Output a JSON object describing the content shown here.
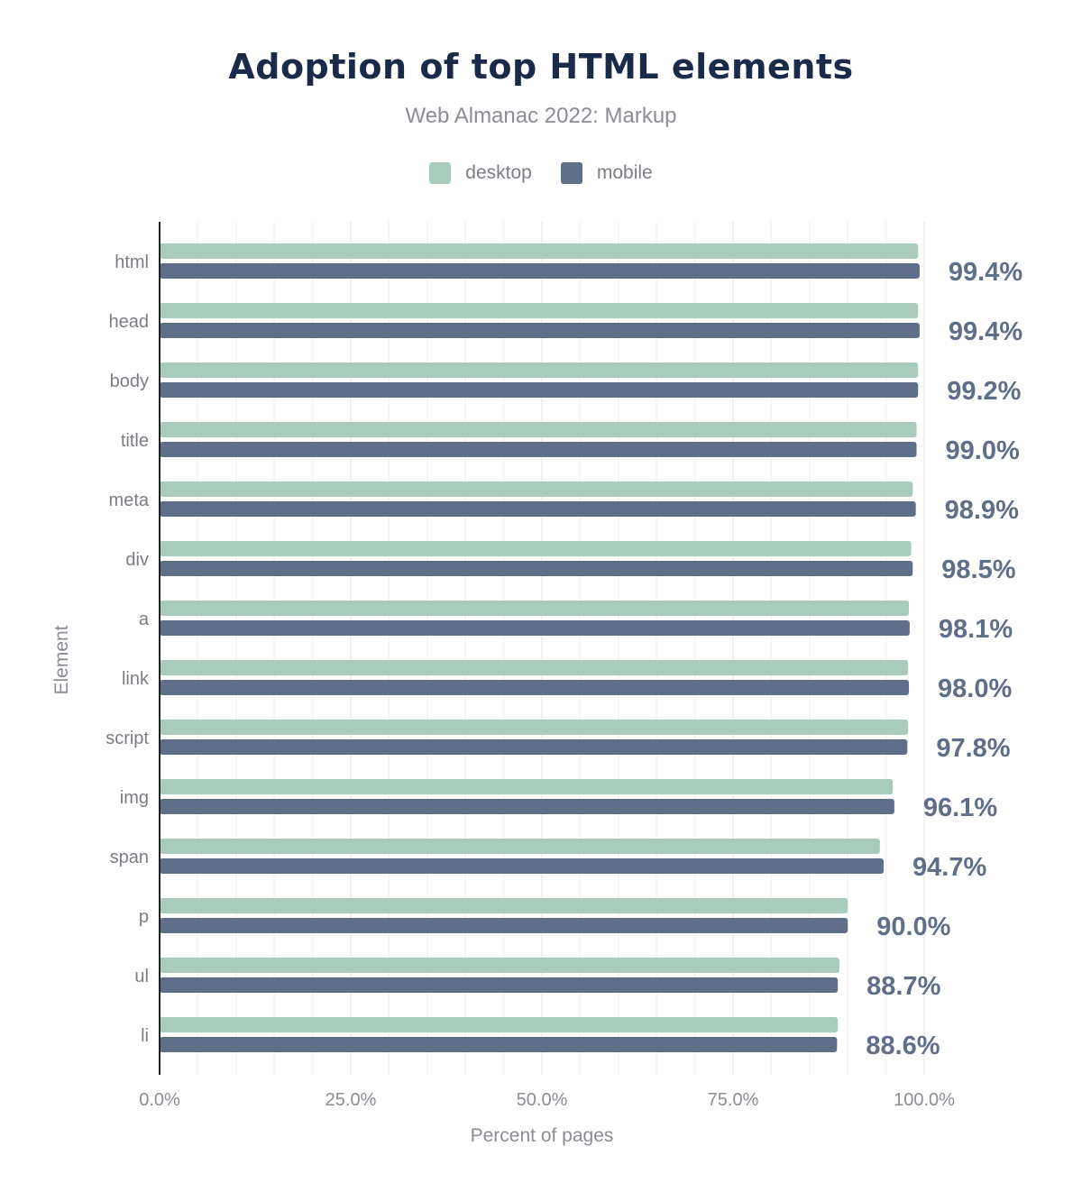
{
  "chart_data": {
    "type": "bar",
    "orientation": "horizontal",
    "title": "Adoption of top HTML elements",
    "subtitle": "Web Almanac 2022: Markup",
    "xlabel": "Percent of pages",
    "ylabel": "Element",
    "xlim": [
      0,
      100
    ],
    "x_ticks": [
      "0.0%",
      "25.0%",
      "50.0%",
      "75.0%",
      "100.0%"
    ],
    "grid": true,
    "legend_position": "top",
    "categories": [
      "html",
      "head",
      "body",
      "title",
      "meta",
      "div",
      "a",
      "link",
      "script",
      "img",
      "span",
      "p",
      "ul",
      "li"
    ],
    "series": [
      {
        "name": "desktop",
        "color": "#a8cbbb",
        "values": [
          99.2,
          99.2,
          99.2,
          99.0,
          98.5,
          98.3,
          98.0,
          97.9,
          97.9,
          95.9,
          94.2,
          90.0,
          88.9,
          88.7
        ]
      },
      {
        "name": "mobile",
        "color": "#5f6f8a",
        "values": [
          99.4,
          99.4,
          99.2,
          99.0,
          98.9,
          98.5,
          98.1,
          98.0,
          97.8,
          96.1,
          94.7,
          90.0,
          88.7,
          88.6
        ]
      }
    ],
    "data_labels": [
      "99.4%",
      "99.4%",
      "99.2%",
      "99.0%",
      "98.9%",
      "98.5%",
      "98.1%",
      "98.0%",
      "97.8%",
      "96.1%",
      "94.7%",
      "90.0%",
      "88.7%",
      "88.6%"
    ]
  }
}
